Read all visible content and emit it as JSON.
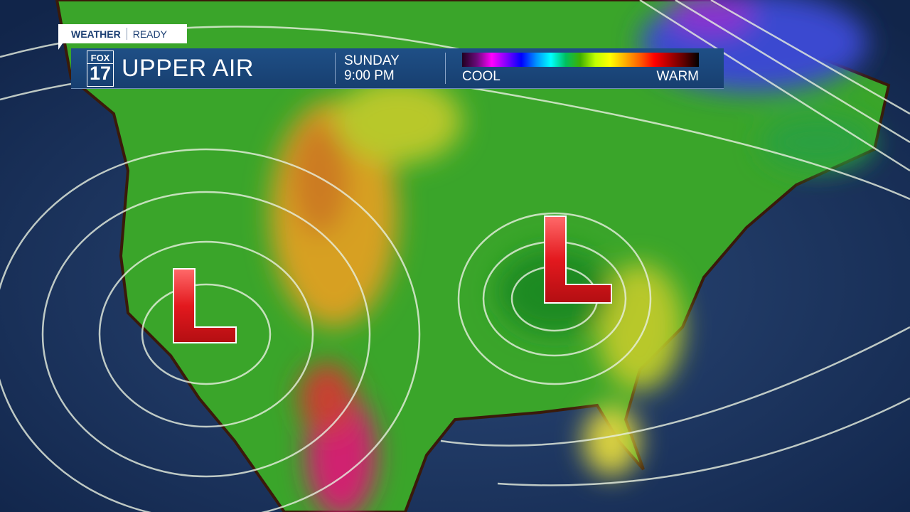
{
  "brand": {
    "tag_left": "WEATHER",
    "tag_right": "READY",
    "logo_top": "FOX",
    "logo_bottom": "17"
  },
  "header": {
    "title": "UPPER AIR",
    "day": "SUNDAY",
    "time": "9:00 PM"
  },
  "legend": {
    "low_label": "COOL",
    "high_label": "WARM",
    "colors": [
      "#200020",
      "#ff00ff",
      "#0000ff",
      "#00ffff",
      "#40b000",
      "#ffff00",
      "#ff6000",
      "#ff0000",
      "#000000"
    ]
  },
  "map": {
    "ocean_color": "#1b2f55",
    "land_color": "#3aa52a",
    "low_pressure_symbols": [
      "L",
      "L"
    ],
    "low_color": "#e8262b"
  }
}
